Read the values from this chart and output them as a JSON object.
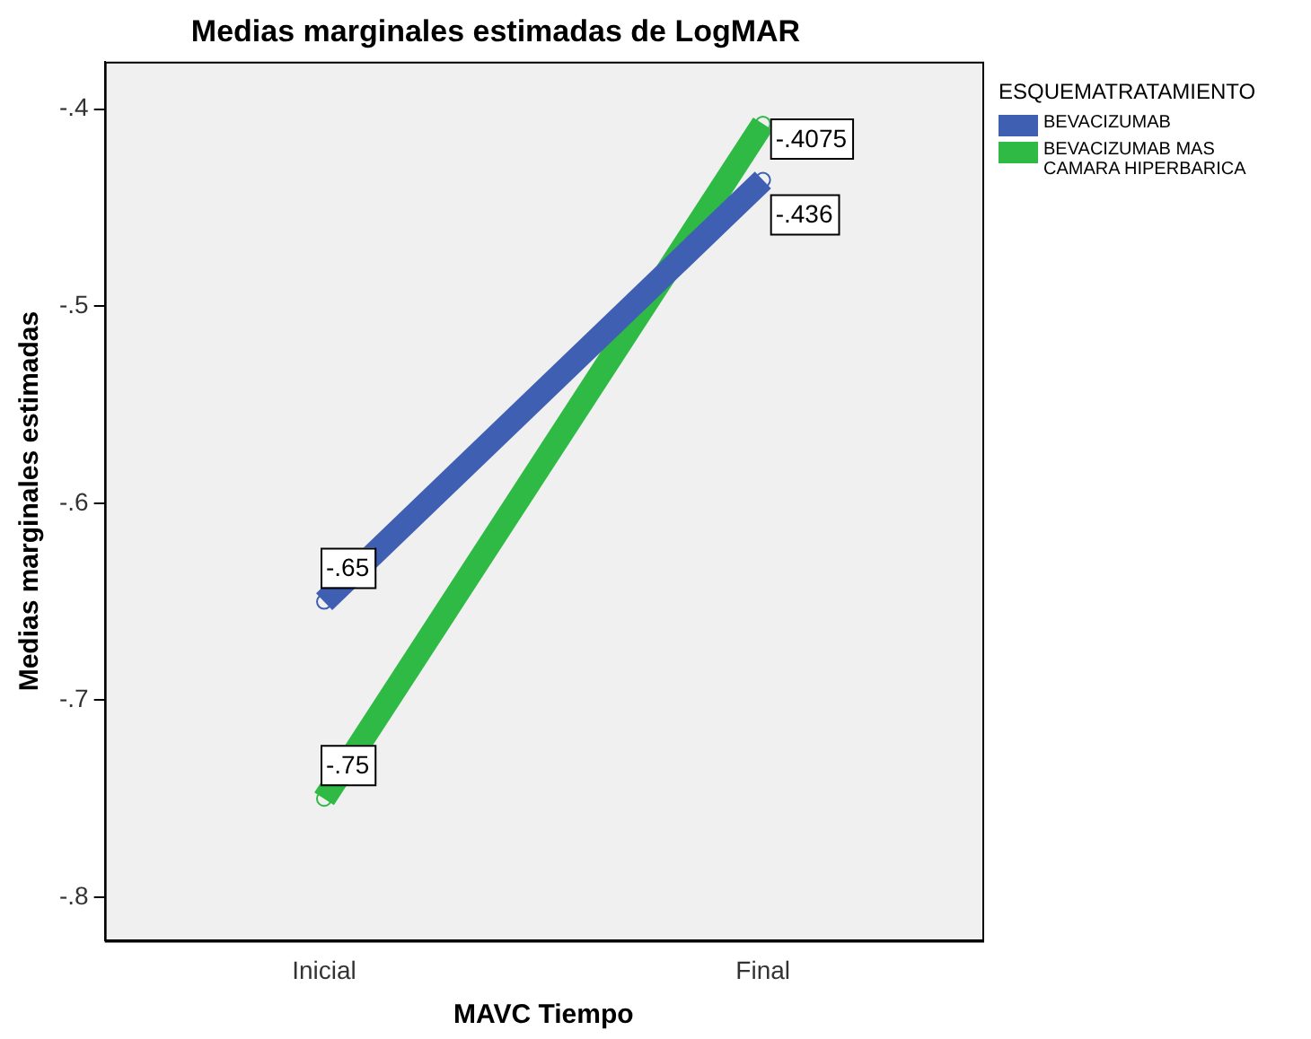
{
  "chart_data": {
    "type": "line",
    "title": "Medias marginales estimadas de LogMAR",
    "xlabel": "MAVC Tiempo",
    "ylabel": "Medias marginales estimadas",
    "legend_title": "ESQUEMATRATAMIENTO",
    "legend": "top right",
    "marker": "circle",
    "grid": false,
    "categories": [
      "Inicial",
      "Final"
    ],
    "ylim": [
      -0.822,
      -0.376
    ],
    "yticks": [
      {
        "value": -0.8,
        "label": "-.8"
      },
      {
        "value": -0.7,
        "label": "-.7"
      },
      {
        "value": -0.6,
        "label": "-.6"
      },
      {
        "value": -0.5,
        "label": "-.5"
      },
      {
        "value": -0.4,
        "label": "-.4"
      }
    ],
    "series": [
      {
        "name": "BEVACIZUMAB",
        "color": "#3f5fb3",
        "values": [
          -0.65,
          -0.436
        ],
        "value_labels": [
          "-.65",
          "-.436"
        ]
      },
      {
        "name": "BEVACIZUMAB MAS CAMARA HIPERBARICA",
        "color": "#2fba45",
        "values": [
          -0.75,
          -0.4075
        ],
        "value_labels": [
          "-.75",
          "-.4075"
        ]
      }
    ]
  }
}
